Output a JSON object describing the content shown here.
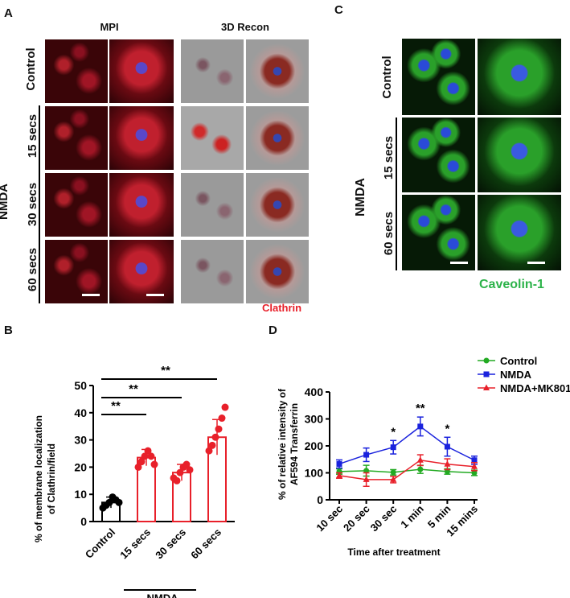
{
  "panelA": {
    "letter": "A",
    "col_mpi": "MPI",
    "col_3d": "3D Recon",
    "rows": [
      "Control",
      "15 secs",
      "30 secs",
      "60 secs"
    ],
    "group": "NMDA",
    "stain": "Clathrin"
  },
  "panelC": {
    "letter": "C",
    "rows": [
      "Control",
      "15 secs",
      "60 secs"
    ],
    "group": "NMDA",
    "stain": "Caveolin-1"
  },
  "panelB": {
    "letter": "B",
    "group": "NMDA",
    "sig": [
      "**",
      "**",
      "**"
    ]
  },
  "panelD": {
    "letter": "D",
    "sig": [
      "*",
      "**",
      "*"
    ]
  },
  "colors": {
    "red": "#e8202a",
    "green": "#22aa22",
    "blue": "#1a22dd",
    "caveolin_green": "#2db34a"
  },
  "chart_data": [
    {
      "type": "bar",
      "categories": [
        "Control",
        "15 secs",
        "30 secs",
        "60 secs"
      ],
      "values": [
        7,
        23.5,
        18,
        31
      ],
      "errors": [
        2,
        3,
        3,
        6.5
      ],
      "points": [
        [
          5,
          6,
          7,
          9,
          8,
          7
        ],
        [
          20,
          22,
          24,
          26,
          24,
          21
        ],
        [
          16,
          15,
          18,
          20,
          21,
          19
        ],
        [
          26,
          28,
          31,
          34,
          38,
          42
        ]
      ],
      "bar_colors": [
        "#000000",
        "#e8202a",
        "#e8202a",
        "#e8202a"
      ],
      "ylabel": "% of membrane localization\nof Clathrin/field",
      "ylim": [
        0,
        50
      ],
      "yticks": [
        0,
        10,
        20,
        30,
        40,
        50
      ],
      "grid": false
    },
    {
      "type": "line",
      "categories": [
        "10 sec",
        "20 sec",
        "30 sec",
        "1 min",
        "5 min",
        "15 mins"
      ],
      "series": [
        {
          "name": "Control",
          "color": "#22aa22",
          "marker": "circle",
          "values": [
            105,
            108,
            102,
            113,
            105,
            100
          ],
          "errors": [
            10,
            20,
            10,
            15,
            10,
            10
          ]
        },
        {
          "name": "NMDA",
          "color": "#1a22dd",
          "marker": "square",
          "values": [
            133,
            167,
            195,
            272,
            197,
            147
          ],
          "errors": [
            15,
            25,
            25,
            35,
            35,
            15
          ]
        },
        {
          "name": "NMDA+MK801",
          "color": "#e8202a",
          "marker": "triangle",
          "values": [
            90,
            75,
            75,
            147,
            132,
            123
          ],
          "errors": [
            10,
            25,
            12,
            20,
            20,
            15
          ]
        }
      ],
      "xlabel": "Time after treatment",
      "ylabel": "% of relative intensity of\nAF594 Transferrin",
      "ylim": [
        0,
        400
      ],
      "yticks": [
        0,
        100,
        200,
        300,
        400
      ],
      "legend": "top-right",
      "grid": false
    }
  ]
}
